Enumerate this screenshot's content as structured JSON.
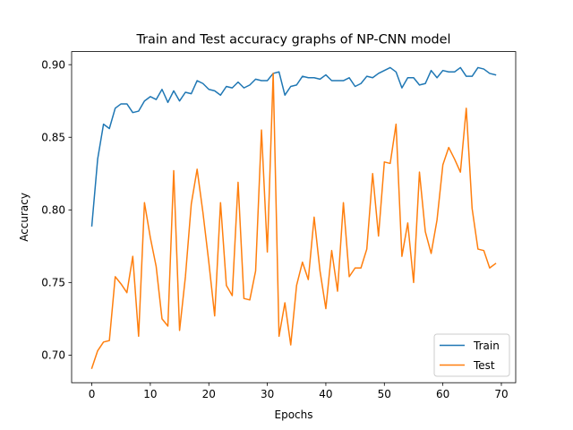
{
  "chart_data": {
    "type": "line",
    "title": "Train and Test accuracy graphs of NP-CNN model",
    "xlabel": "Epochs",
    "ylabel": "Accuracy",
    "xlim": [
      -3.45,
      72.45
    ],
    "ylim": [
      0.681,
      0.909
    ],
    "xticks": [
      0,
      10,
      20,
      30,
      40,
      50,
      60,
      70
    ],
    "yticks": [
      0.7,
      0.75,
      0.8,
      0.85,
      0.9
    ],
    "ytick_labels": [
      "0.70",
      "0.75",
      "0.80",
      "0.85",
      "0.90"
    ],
    "grid": false,
    "legend_position": "lower-right",
    "x": [
      0,
      1,
      2,
      3,
      4,
      5,
      6,
      7,
      8,
      9,
      10,
      11,
      12,
      13,
      14,
      15,
      16,
      17,
      18,
      19,
      20,
      21,
      22,
      23,
      24,
      25,
      26,
      27,
      28,
      29,
      30,
      31,
      32,
      33,
      34,
      35,
      36,
      37,
      38,
      39,
      40,
      41,
      42,
      43,
      44,
      45,
      46,
      47,
      48,
      49,
      50,
      51,
      52,
      53,
      54,
      55,
      56,
      57,
      58,
      59,
      60,
      61,
      62,
      63,
      64,
      65,
      66,
      67,
      68,
      69
    ],
    "series": [
      {
        "name": "Train",
        "color": "#1f77b4",
        "values": [
          0.789,
          0.835,
          0.859,
          0.856,
          0.87,
          0.873,
          0.873,
          0.867,
          0.868,
          0.875,
          0.878,
          0.876,
          0.883,
          0.874,
          0.882,
          0.875,
          0.881,
          0.88,
          0.889,
          0.887,
          0.883,
          0.882,
          0.879,
          0.885,
          0.884,
          0.888,
          0.884,
          0.886,
          0.89,
          0.889,
          0.889,
          0.894,
          0.895,
          0.879,
          0.885,
          0.886,
          0.892,
          0.891,
          0.891,
          0.89,
          0.893,
          0.889,
          0.889,
          0.889,
          0.891,
          0.885,
          0.887,
          0.892,
          0.891,
          0.894,
          0.896,
          0.898,
          0.895,
          0.884,
          0.891,
          0.891,
          0.886,
          0.887,
          0.896,
          0.891,
          0.896,
          0.895,
          0.895,
          0.898,
          0.892,
          0.892,
          0.898,
          0.897,
          0.894,
          0.893
        ]
      },
      {
        "name": "Test",
        "color": "#ff7f0e",
        "values": [
          0.691,
          0.703,
          0.709,
          0.71,
          0.754,
          0.749,
          0.743,
          0.768,
          0.713,
          0.805,
          0.781,
          0.761,
          0.725,
          0.72,
          0.827,
          0.717,
          0.754,
          0.804,
          0.828,
          0.798,
          0.764,
          0.727,
          0.805,
          0.748,
          0.741,
          0.819,
          0.739,
          0.738,
          0.758,
          0.855,
          0.771,
          0.894,
          0.713,
          0.736,
          0.707,
          0.748,
          0.764,
          0.752,
          0.795,
          0.758,
          0.732,
          0.772,
          0.744,
          0.805,
          0.754,
          0.76,
          0.76,
          0.773,
          0.825,
          0.782,
          0.833,
          0.832,
          0.859,
          0.768,
          0.791,
          0.75,
          0.826,
          0.785,
          0.77,
          0.793,
          0.831,
          0.843,
          0.835,
          0.826,
          0.87,
          0.801,
          0.773,
          0.772,
          0.76,
          0.763
        ]
      }
    ]
  }
}
